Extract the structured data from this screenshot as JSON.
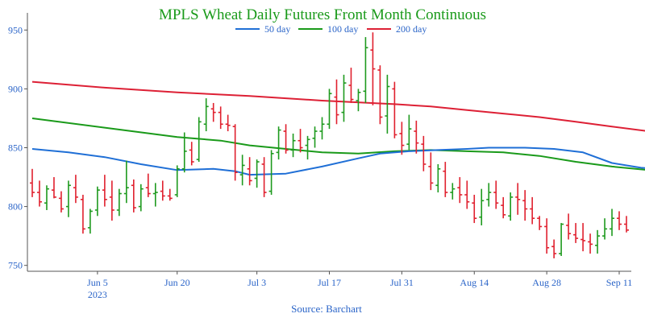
{
  "chart_data": {
    "type": "ohlc",
    "title": "MPLS Wheat Daily Futures Front Month Continuous",
    "source": "Source: Barchart",
    "ylim": [
      745,
      955
    ],
    "y_ticks": [
      750,
      800,
      850,
      900,
      950
    ],
    "x_tick_labels": [
      {
        "label": "Jun 5",
        "sublabel": "2023",
        "bar": 9
      },
      {
        "label": "Jun 20",
        "sublabel": "",
        "bar": 20
      },
      {
        "label": "Jul 3",
        "sublabel": "",
        "bar": 31
      },
      {
        "label": "Jul 17",
        "sublabel": "",
        "bar": 41
      },
      {
        "label": "Jul 31",
        "sublabel": "",
        "bar": 51
      },
      {
        "label": "Aug 14",
        "sublabel": "",
        "bar": 61
      },
      {
        "label": "Aug 28",
        "sublabel": "",
        "bar": 71
      },
      {
        "label": "Sep 11",
        "sublabel": "",
        "bar": 81
      }
    ],
    "colors": {
      "up": "#1e9a1e",
      "down": "#e0202e",
      "ma50": "#1f6fd6",
      "ma100": "#1a9a1a",
      "ma200": "#dd2035",
      "title": "#1a9a1a",
      "axis_text": "#2a64c8"
    },
    "legend": {
      "placement": "top-center",
      "entries": [
        {
          "name": "50 day",
          "key": "ma50"
        },
        {
          "name": "100 day",
          "key": "ma100"
        },
        {
          "name": "200 day",
          "key": "ma200"
        }
      ]
    },
    "ohlc": [
      [
        820,
        832,
        808,
        812
      ],
      [
        812,
        822,
        800,
        804
      ],
      [
        803,
        818,
        797,
        815
      ],
      [
        814,
        825,
        807,
        808
      ],
      [
        807,
        813,
        795,
        798
      ],
      [
        800,
        822,
        791,
        818
      ],
      [
        816,
        827,
        803,
        808
      ],
      [
        806,
        810,
        777,
        781
      ],
      [
        782,
        798,
        777,
        796
      ],
      [
        797,
        817,
        792,
        814
      ],
      [
        814,
        827,
        800,
        806
      ],
      [
        808,
        822,
        788,
        797
      ],
      [
        797,
        815,
        792,
        811
      ],
      [
        811,
        839,
        803,
        816
      ],
      [
        818,
        823,
        795,
        799
      ],
      [
        800,
        819,
        796,
        815
      ],
      [
        816,
        828,
        808,
        811
      ],
      [
        811,
        820,
        800,
        812
      ],
      [
        813,
        822,
        805,
        809
      ],
      [
        809,
        815,
        805,
        807
      ],
      [
        810,
        835,
        808,
        832
      ],
      [
        832,
        863,
        829,
        847
      ],
      [
        848,
        855,
        835,
        838
      ],
      [
        840,
        876,
        838,
        872
      ],
      [
        870,
        892,
        864,
        885
      ],
      [
        883,
        888,
        872,
        880
      ],
      [
        880,
        885,
        866,
        870
      ],
      [
        870,
        878,
        864,
        869
      ],
      [
        868,
        870,
        822,
        829
      ],
      [
        827,
        844,
        818,
        835
      ],
      [
        832,
        842,
        818,
        822
      ],
      [
        824,
        840,
        816,
        838
      ],
      [
        836,
        842,
        808,
        812
      ],
      [
        813,
        848,
        810,
        845
      ],
      [
        846,
        868,
        840,
        865
      ],
      [
        864,
        870,
        845,
        848
      ],
      [
        848,
        862,
        842,
        856
      ],
      [
        856,
        866,
        846,
        850
      ],
      [
        852,
        860,
        840,
        857
      ],
      [
        858,
        868,
        850,
        864
      ],
      [
        864,
        876,
        857,
        870
      ],
      [
        870,
        900,
        866,
        896
      ],
      [
        893,
        908,
        870,
        878
      ],
      [
        880,
        912,
        872,
        905
      ],
      [
        903,
        918,
        888,
        891
      ],
      [
        890,
        900,
        881,
        897
      ],
      [
        898,
        944,
        888,
        935
      ],
      [
        933,
        948,
        886,
        917
      ],
      [
        916,
        920,
        870,
        876
      ],
      [
        877,
        912,
        862,
        902
      ],
      [
        900,
        906,
        858,
        861
      ],
      [
        862,
        872,
        844,
        852
      ],
      [
        853,
        878,
        848,
        866
      ],
      [
        864,
        873,
        845,
        854
      ],
      [
        853,
        860,
        830,
        836
      ],
      [
        834,
        846,
        814,
        820
      ],
      [
        818,
        836,
        812,
        832
      ],
      [
        830,
        838,
        808,
        812
      ],
      [
        812,
        820,
        806,
        815
      ],
      [
        816,
        825,
        803,
        810
      ],
      [
        810,
        822,
        798,
        804
      ],
      [
        803,
        810,
        786,
        790
      ],
      [
        791,
        815,
        784,
        805
      ],
      [
        806,
        820,
        800,
        812
      ],
      [
        812,
        822,
        798,
        803
      ],
      [
        801,
        808,
        790,
        793
      ],
      [
        792,
        812,
        788,
        808
      ],
      [
        808,
        820,
        793,
        806
      ],
      [
        805,
        814,
        788,
        798
      ],
      [
        798,
        808,
        785,
        790
      ],
      [
        790,
        792,
        780,
        783
      ],
      [
        783,
        790,
        760,
        765
      ],
      [
        766,
        772,
        756,
        760
      ],
      [
        760,
        786,
        758,
        785
      ],
      [
        784,
        794,
        772,
        777
      ],
      [
        776,
        786,
        769,
        773
      ],
      [
        772,
        786,
        762,
        771
      ],
      [
        770,
        777,
        760,
        768
      ],
      [
        767,
        780,
        760,
        775
      ],
      [
        775,
        790,
        772,
        781
      ],
      [
        781,
        798,
        775,
        790
      ],
      [
        790,
        796,
        780,
        785
      ],
      [
        785,
        792,
        778,
        780
      ]
    ],
    "ma50": [
      [
        0,
        849
      ],
      [
        5,
        846
      ],
      [
        10,
        842
      ],
      [
        15,
        836
      ],
      [
        20,
        831
      ],
      [
        25,
        832
      ],
      [
        28,
        830
      ],
      [
        30,
        827
      ],
      [
        35,
        828
      ],
      [
        40,
        834
      ],
      [
        45,
        841
      ],
      [
        48,
        845
      ],
      [
        52,
        847
      ],
      [
        56,
        848
      ],
      [
        60,
        849
      ],
      [
        63,
        850
      ],
      [
        68,
        850
      ],
      [
        72,
        849
      ],
      [
        76,
        846
      ],
      [
        80,
        837
      ],
      [
        84,
        833
      ],
      [
        88,
        831
      ],
      [
        91,
        828
      ]
    ],
    "ma100": [
      [
        0,
        875
      ],
      [
        10,
        867
      ],
      [
        20,
        859
      ],
      [
        26,
        856
      ],
      [
        30,
        852
      ],
      [
        35,
        849
      ],
      [
        40,
        846
      ],
      [
        45,
        845
      ],
      [
        50,
        847
      ],
      [
        55,
        848
      ],
      [
        60,
        847
      ],
      [
        65,
        846
      ],
      [
        70,
        843
      ],
      [
        75,
        838
      ],
      [
        80,
        834
      ],
      [
        85,
        831
      ],
      [
        88,
        829
      ],
      [
        91,
        828
      ]
    ],
    "ma200": [
      [
        0,
        906
      ],
      [
        10,
        901
      ],
      [
        20,
        897
      ],
      [
        30,
        894
      ],
      [
        40,
        890
      ],
      [
        50,
        887
      ],
      [
        55,
        885
      ],
      [
        60,
        882
      ],
      [
        65,
        879
      ],
      [
        70,
        876
      ],
      [
        75,
        872
      ],
      [
        80,
        868
      ],
      [
        85,
        864
      ],
      [
        91,
        861
      ]
    ]
  }
}
